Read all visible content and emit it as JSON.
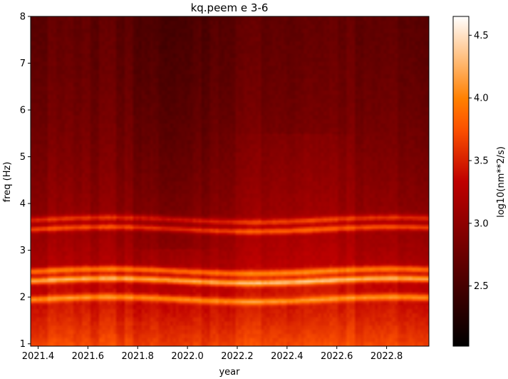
{
  "chart_data": {
    "type": "heatmap",
    "title": "kq.peem e 3-6",
    "xlabel": "year",
    "ylabel": "freq (Hz)",
    "xlim": [
      2021.37,
      2022.97
    ],
    "ylim": [
      0.95,
      8.0
    ],
    "x_ticks": [
      "2021.4",
      "2021.6",
      "2021.8",
      "2022.0",
      "2022.2",
      "2022.4",
      "2022.6",
      "2022.8"
    ],
    "x_tick_values": [
      2021.4,
      2021.6,
      2021.8,
      2022.0,
      2022.2,
      2022.4,
      2022.6,
      2022.8
    ],
    "y_ticks": [
      "1",
      "2",
      "3",
      "4",
      "5",
      "6",
      "7",
      "8"
    ],
    "y_tick_values": [
      1,
      2,
      3,
      4,
      5,
      6,
      7,
      8
    ],
    "colorbar": {
      "label": "log10(nm**2/s)",
      "range": [
        2.02,
        4.65
      ],
      "ticks": [
        "2.5",
        "3.0",
        "3.5",
        "4.0",
        "4.5"
      ],
      "tick_values": [
        2.5,
        3.0,
        3.5,
        4.0,
        4.5
      ],
      "colormap": "gist_heat"
    },
    "bands": [
      {
        "freq": 1.95,
        "value": 4.2
      },
      {
        "freq": 2.35,
        "value": 4.45
      },
      {
        "freq": 2.55,
        "value": 4.2
      },
      {
        "freq": 3.45,
        "value": 4.15
      },
      {
        "freq": 3.65,
        "value": 4.05
      }
    ],
    "grid": false
  }
}
